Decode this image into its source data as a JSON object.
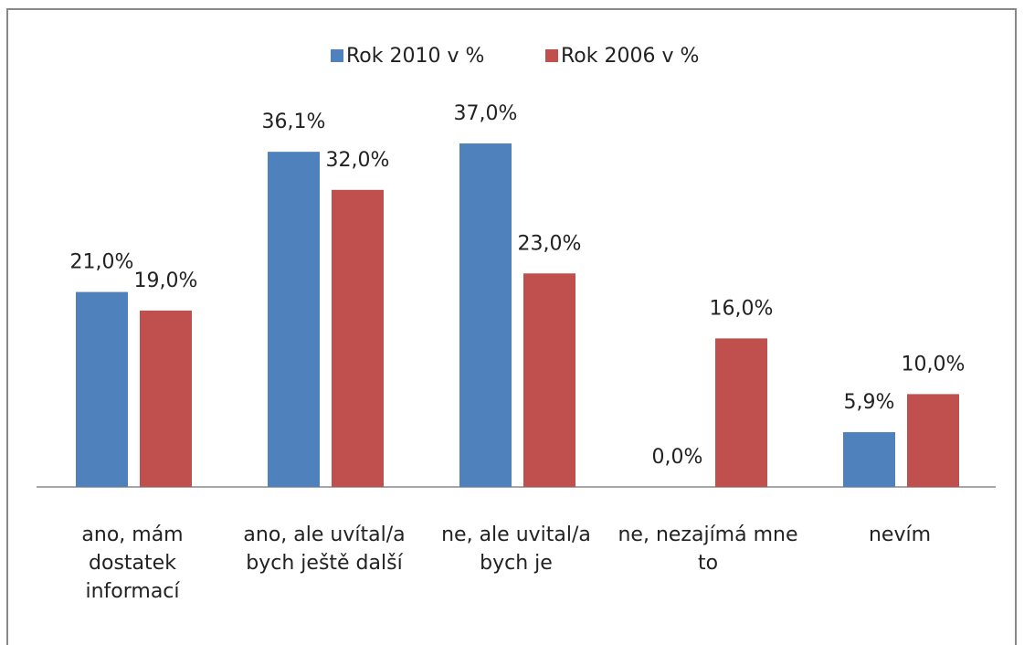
{
  "chart_data": {
    "type": "bar",
    "categories": [
      "ano, mám dostatek informací",
      "ano, ale uvítal/a bych ještě další",
      "ne, ale uvital/a bych je",
      "ne, nezajímá mne to",
      "nevím"
    ],
    "series": [
      {
        "name": "Rok 2010 v %",
        "color": "#4f81bd",
        "values": [
          21,
          36.1,
          37,
          0,
          5.9
        ],
        "value_labels": [
          "21,0%",
          "36,1%",
          "37,0%",
          "0,0%",
          "5,9%"
        ]
      },
      {
        "name": "Rok 2006 v %",
        "color": "#c0504d",
        "values": [
          19,
          32,
          23,
          16,
          10
        ],
        "value_labels": [
          "19,0%",
          "32,0%",
          "23,0%",
          "16,0%",
          "10,0%"
        ]
      }
    ],
    "legend": "top"
  }
}
